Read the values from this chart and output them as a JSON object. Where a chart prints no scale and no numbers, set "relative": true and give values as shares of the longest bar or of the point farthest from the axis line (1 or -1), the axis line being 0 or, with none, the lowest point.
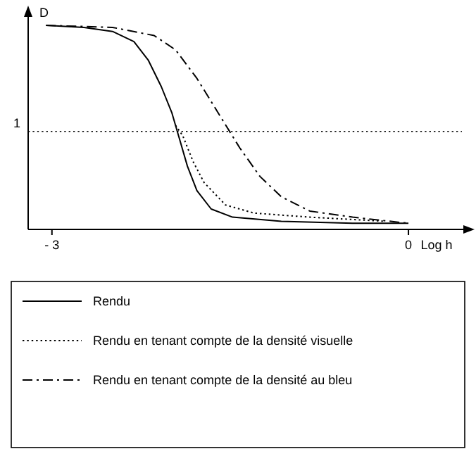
{
  "chart_data": {
    "type": "line",
    "relative": true,
    "xlabel": "Log h",
    "ylabel": "D",
    "xlim": [
      -3.2,
      0.45
    ],
    "xticks": [
      {
        "value": -3,
        "label": "- 3"
      },
      0
    ],
    "legend": "bottom",
    "marker": "none",
    "ref_lines": [
      {
        "axis": "y",
        "value": 0.48,
        "line_style": "dotted"
      }
    ],
    "annotations": [
      {
        "text": "1",
        "x": -3.2,
        "y": 0.48
      }
    ],
    "series": [
      {
        "name": "Rendu",
        "color": "#000000",
        "line_style": "solid",
        "x": [
          -3.05,
          -2.73,
          -2.49,
          -2.31,
          -2.19,
          -2.08,
          -1.99,
          -1.92,
          -1.86,
          -1.78,
          -1.66,
          -1.48,
          -1.07,
          -0.47,
          0
        ],
        "values": [
          1.0,
          0.99,
          0.97,
          0.92,
          0.83,
          0.7,
          0.57,
          0.43,
          0.31,
          0.19,
          0.1,
          0.06,
          0.04,
          0.03,
          0.03
        ]
      },
      {
        "name": "Rendu en tenant compte de la densité visuelle",
        "color": "#000000",
        "line_style": "dotted",
        "x": [
          -1.96,
          -1.9,
          -1.81,
          -1.72,
          -1.54,
          -1.3,
          -0.83,
          -0.2
        ],
        "values": [
          0.51,
          0.46,
          0.33,
          0.23,
          0.12,
          0.08,
          0.06,
          0.04
        ]
      },
      {
        "name": "Rendu en tenant compte de la densité au bleu",
        "color": "#000000",
        "line_style": "dashed",
        "x": [
          -3.05,
          -2.49,
          -2.14,
          -1.96,
          -1.78,
          -1.6,
          -1.42,
          -1.25,
          -1.07,
          -0.83,
          -0.47,
          0
        ],
        "values": [
          1.0,
          0.99,
          0.95,
          0.88,
          0.74,
          0.57,
          0.4,
          0.26,
          0.16,
          0.09,
          0.06,
          0.03
        ]
      }
    ]
  }
}
